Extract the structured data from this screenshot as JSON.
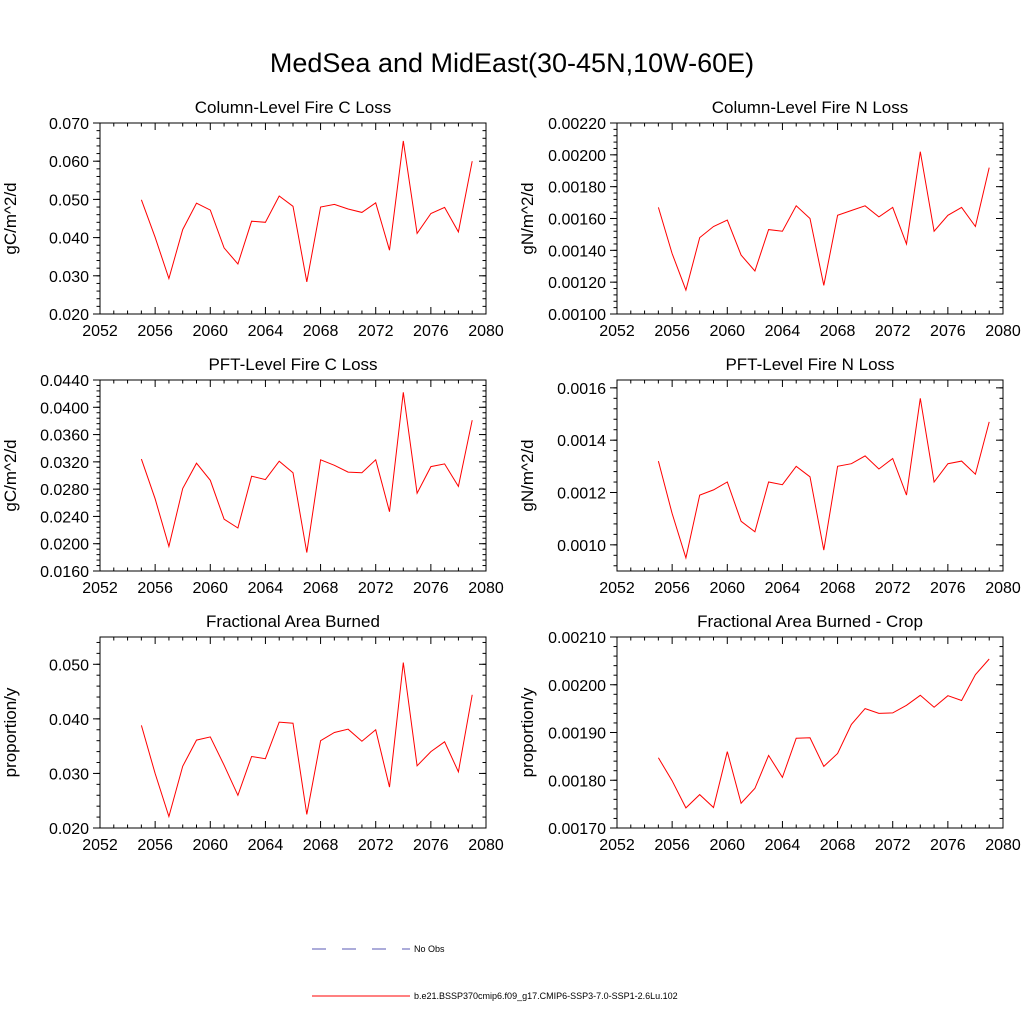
{
  "page": {
    "title": "MedSea and MidEast(30-45N,10W-60E)"
  },
  "legend": [
    {
      "label": "No Obs",
      "color": "#5a5ab4",
      "style": "dashed"
    },
    {
      "label": "b.e21.BSSP370cmip6.f09_g17.CMIP6-SSP3-7.0-SSP1-2.6Lu.102",
      "color": "#ff0000",
      "style": "solid"
    }
  ],
  "chart_data": [
    {
      "type": "line",
      "title": "Column-Level Fire C Loss",
      "ylabel": "gC/m^2/d",
      "xlim": [
        2052,
        2080
      ],
      "ylim": [
        0.02,
        0.07
      ],
      "xticks": [
        2052,
        2056,
        2060,
        2064,
        2068,
        2072,
        2076,
        2080
      ],
      "yticks": [
        0.02,
        0.03,
        0.04,
        0.05,
        0.06,
        0.07
      ],
      "ytick_labels": [
        "0.020",
        "0.030",
        "0.040",
        "0.050",
        "0.060",
        "0.070"
      ],
      "line_color": "#ff0000",
      "x": [
        2055,
        2056,
        2057,
        2058,
        2059,
        2060,
        2061,
        2062,
        2063,
        2064,
        2065,
        2066,
        2067,
        2068,
        2069,
        2070,
        2071,
        2072,
        2073,
        2074,
        2075,
        2076,
        2077,
        2078,
        2079
      ],
      "y": [
        0.0499,
        0.0401,
        0.0293,
        0.0421,
        0.049,
        0.0472,
        0.0373,
        0.0331,
        0.0443,
        0.044,
        0.0509,
        0.0482,
        0.0284,
        0.048,
        0.0487,
        0.0475,
        0.0466,
        0.0491,
        0.0367,
        0.0653,
        0.0411,
        0.0463,
        0.0479,
        0.0415,
        0.06
      ]
    },
    {
      "type": "line",
      "title": "Column-Level Fire N Loss",
      "ylabel": "gN/m^2/d",
      "xlim": [
        2052,
        2080
      ],
      "ylim": [
        0.001,
        0.0022
      ],
      "xticks": [
        2052,
        2056,
        2060,
        2064,
        2068,
        2072,
        2076,
        2080
      ],
      "yticks": [
        0.001,
        0.0012,
        0.0014,
        0.0016,
        0.0018,
        0.002,
        0.0022
      ],
      "ytick_labels": [
        "0.00100",
        "0.00120",
        "0.00140",
        "0.00160",
        "0.00180",
        "0.00200",
        "0.00220"
      ],
      "line_color": "#ff0000",
      "x": [
        2055,
        2056,
        2057,
        2058,
        2059,
        2060,
        2061,
        2062,
        2063,
        2064,
        2065,
        2066,
        2067,
        2068,
        2069,
        2070,
        2071,
        2072,
        2073,
        2074,
        2075,
        2076,
        2077,
        2078,
        2079
      ],
      "y": [
        0.00167,
        0.00138,
        0.00115,
        0.00148,
        0.00155,
        0.00159,
        0.00137,
        0.00127,
        0.00153,
        0.00152,
        0.00168,
        0.0016,
        0.00118,
        0.00162,
        0.00165,
        0.00168,
        0.00161,
        0.00167,
        0.00144,
        0.00202,
        0.00152,
        0.00162,
        0.00167,
        0.00155,
        0.00192
      ]
    },
    {
      "type": "line",
      "title": "PFT-Level Fire C Loss",
      "ylabel": "gC/m^2/d",
      "xlim": [
        2052,
        2080
      ],
      "ylim": [
        0.016,
        0.044
      ],
      "xticks": [
        2052,
        2056,
        2060,
        2064,
        2068,
        2072,
        2076,
        2080
      ],
      "yticks": [
        0.016,
        0.02,
        0.024,
        0.028,
        0.032,
        0.036,
        0.04,
        0.044
      ],
      "ytick_labels": [
        "0.0160",
        "0.0200",
        "0.0240",
        "0.0280",
        "0.0320",
        "0.0360",
        "0.0400",
        "0.0440"
      ],
      "line_color": "#ff0000",
      "x": [
        2055,
        2056,
        2057,
        2058,
        2059,
        2060,
        2061,
        2062,
        2063,
        2064,
        2065,
        2066,
        2067,
        2068,
        2069,
        2070,
        2071,
        2072,
        2073,
        2074,
        2075,
        2076,
        2077,
        2078,
        2079
      ],
      "y": [
        0.0324,
        0.0266,
        0.0196,
        0.0281,
        0.0318,
        0.0293,
        0.0236,
        0.0223,
        0.0299,
        0.0294,
        0.0321,
        0.0304,
        0.0187,
        0.0323,
        0.0315,
        0.0305,
        0.0304,
        0.0323,
        0.0247,
        0.0422,
        0.0274,
        0.0313,
        0.0317,
        0.0284,
        0.0381
      ]
    },
    {
      "type": "line",
      "title": "PFT-Level Fire N Loss",
      "ylabel": "gN/m^2/d",
      "xlim": [
        2052,
        2080
      ],
      "ylim": [
        0.0009,
        0.00163
      ],
      "xticks": [
        2052,
        2056,
        2060,
        2064,
        2068,
        2072,
        2076,
        2080
      ],
      "yticks": [
        0.001,
        0.0012,
        0.0014,
        0.0016
      ],
      "ytick_labels": [
        "0.0010",
        "0.0012",
        "0.0014",
        "0.0016"
      ],
      "line_color": "#ff0000",
      "x": [
        2055,
        2056,
        2057,
        2058,
        2059,
        2060,
        2061,
        2062,
        2063,
        2064,
        2065,
        2066,
        2067,
        2068,
        2069,
        2070,
        2071,
        2072,
        2073,
        2074,
        2075,
        2076,
        2077,
        2078,
        2079
      ],
      "y": [
        0.00132,
        0.00112,
        0.00095,
        0.00119,
        0.00121,
        0.00124,
        0.00109,
        0.00105,
        0.00124,
        0.00123,
        0.0013,
        0.00126,
        0.00098,
        0.0013,
        0.00131,
        0.00134,
        0.00129,
        0.00133,
        0.00119,
        0.00156,
        0.00124,
        0.00131,
        0.00132,
        0.00127,
        0.00147
      ]
    },
    {
      "type": "line",
      "title": "Fractional Area Burned",
      "ylabel": "proportion/y",
      "xlim": [
        2052,
        2080
      ],
      "ylim": [
        0.02,
        0.055
      ],
      "xticks": [
        2052,
        2056,
        2060,
        2064,
        2068,
        2072,
        2076,
        2080
      ],
      "yticks": [
        0.02,
        0.03,
        0.04,
        0.05
      ],
      "ytick_labels": [
        "0.020",
        "0.030",
        "0.040",
        "0.050"
      ],
      "line_color": "#ff0000",
      "x": [
        2055,
        2056,
        2057,
        2058,
        2059,
        2060,
        2061,
        2062,
        2063,
        2064,
        2065,
        2066,
        2067,
        2068,
        2069,
        2070,
        2071,
        2072,
        2073,
        2074,
        2075,
        2076,
        2077,
        2078,
        2079
      ],
      "y": [
        0.0388,
        0.03,
        0.0221,
        0.0313,
        0.0361,
        0.0367,
        0.0315,
        0.026,
        0.0331,
        0.0327,
        0.0394,
        0.0392,
        0.0225,
        0.036,
        0.0375,
        0.0381,
        0.0359,
        0.038,
        0.0275,
        0.0503,
        0.0314,
        0.034,
        0.0358,
        0.0303,
        0.0444
      ]
    },
    {
      "type": "line",
      "title": "Fractional Area Burned - Crop",
      "ylabel": "proportion/y",
      "xlim": [
        2052,
        2080
      ],
      "ylim": [
        0.0017,
        0.0021
      ],
      "xticks": [
        2052,
        2056,
        2060,
        2064,
        2068,
        2072,
        2076,
        2080
      ],
      "yticks": [
        0.0017,
        0.0018,
        0.0019,
        0.002,
        0.0021
      ],
      "ytick_labels": [
        "0.00170",
        "0.00180",
        "0.00190",
        "0.00200",
        "0.00210"
      ],
      "line_color": "#ff0000",
      "x": [
        2055,
        2056,
        2057,
        2058,
        2059,
        2060,
        2061,
        2062,
        2063,
        2064,
        2065,
        2066,
        2067,
        2068,
        2069,
        2070,
        2071,
        2072,
        2073,
        2074,
        2075,
        2076,
        2077,
        2078,
        2079
      ],
      "y": [
        0.001847,
        0.001799,
        0.001742,
        0.00177,
        0.001743,
        0.00186,
        0.001752,
        0.001783,
        0.001852,
        0.001806,
        0.001888,
        0.001889,
        0.001829,
        0.001856,
        0.001917,
        0.00195,
        0.00194,
        0.001941,
        0.001957,
        0.001978,
        0.001953,
        0.001977,
        0.001967,
        0.002021,
        0.002054
      ]
    }
  ]
}
